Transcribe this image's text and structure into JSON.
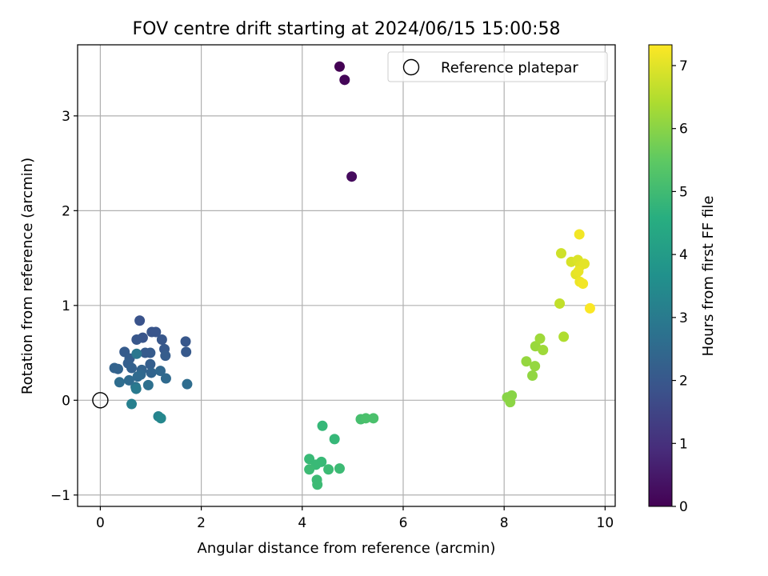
{
  "chart_data": {
    "type": "scatter",
    "title": "FOV centre drift starting at 2024/06/15 15:00:58",
    "xlabel": "Angular distance from reference (arcmin)",
    "ylabel": "Rotation from reference (arcmin)",
    "xlim": [
      -0.45,
      10.2
    ],
    "ylim": [
      -1.12,
      3.75
    ],
    "xticks": [
      0,
      2,
      4,
      6,
      8,
      10
    ],
    "xtick_labels": [
      "0",
      "2",
      "4",
      "6",
      "8",
      "10"
    ],
    "yticks": [
      -1,
      0,
      1,
      2,
      3
    ],
    "ytick_labels": [
      "−1",
      "0",
      "1",
      "2",
      "3"
    ],
    "grid": true,
    "legend": {
      "location": "upper right",
      "entries": [
        "Reference platepar"
      ]
    },
    "reference_point": {
      "x": 0,
      "y": 0,
      "marker": "open-circle"
    },
    "colorbar": {
      "label": "Hours from first FF file",
      "range": [
        0,
        7.33
      ],
      "ticks": [
        0,
        1,
        2,
        3,
        4,
        5,
        6,
        7
      ],
      "tick_labels": [
        "0",
        "1",
        "2",
        "3",
        "4",
        "5",
        "6",
        "7"
      ],
      "colormap": "viridis"
    },
    "points": [
      {
        "x": 4.74,
        "y": 3.52,
        "c": 0.0
      },
      {
        "x": 4.84,
        "y": 3.38,
        "c": 0.1
      },
      {
        "x": 4.98,
        "y": 2.36,
        "c": 0.2
      },
      {
        "x": 0.78,
        "y": 0.84,
        "c": 1.9
      },
      {
        "x": 1.02,
        "y": 0.72,
        "c": 1.95
      },
      {
        "x": 1.1,
        "y": 0.72,
        "c": 1.95
      },
      {
        "x": 0.84,
        "y": 0.66,
        "c": 1.95
      },
      {
        "x": 0.72,
        "y": 0.64,
        "c": 2.0
      },
      {
        "x": 1.22,
        "y": 0.64,
        "c": 2.0
      },
      {
        "x": 1.69,
        "y": 0.62,
        "c": 2.0
      },
      {
        "x": 1.27,
        "y": 0.54,
        "c": 2.05
      },
      {
        "x": 1.7,
        "y": 0.51,
        "c": 2.05
      },
      {
        "x": 0.48,
        "y": 0.51,
        "c": 2.1
      },
      {
        "x": 0.89,
        "y": 0.5,
        "c": 2.1
      },
      {
        "x": 0.99,
        "y": 0.5,
        "c": 2.1
      },
      {
        "x": 1.29,
        "y": 0.47,
        "c": 2.15
      },
      {
        "x": 0.58,
        "y": 0.44,
        "c": 2.15
      },
      {
        "x": 0.55,
        "y": 0.39,
        "c": 2.2
      },
      {
        "x": 0.99,
        "y": 0.38,
        "c": 2.2
      },
      {
        "x": 0.62,
        "y": 0.34,
        "c": 2.25
      },
      {
        "x": 0.28,
        "y": 0.34,
        "c": 2.3
      },
      {
        "x": 0.35,
        "y": 0.33,
        "c": 2.3
      },
      {
        "x": 0.82,
        "y": 0.32,
        "c": 2.3
      },
      {
        "x": 1.01,
        "y": 0.29,
        "c": 2.35
      },
      {
        "x": 1.19,
        "y": 0.31,
        "c": 2.45
      },
      {
        "x": 0.8,
        "y": 0.27,
        "c": 2.45
      },
      {
        "x": 0.74,
        "y": 0.25,
        "c": 2.5
      },
      {
        "x": 1.3,
        "y": 0.23,
        "c": 2.5
      },
      {
        "x": 0.57,
        "y": 0.21,
        "c": 2.55
      },
      {
        "x": 0.38,
        "y": 0.19,
        "c": 2.6
      },
      {
        "x": 1.72,
        "y": 0.17,
        "c": 2.6
      },
      {
        "x": 0.95,
        "y": 0.16,
        "c": 2.7
      },
      {
        "x": 0.7,
        "y": 0.14,
        "c": 2.75
      },
      {
        "x": 0.72,
        "y": 0.49,
        "c": 2.9
      },
      {
        "x": 0.71,
        "y": 0.12,
        "c": 3.0
      },
      {
        "x": 0.62,
        "y": -0.04,
        "c": 3.2
      },
      {
        "x": 1.15,
        "y": -0.17,
        "c": 3.3
      },
      {
        "x": 1.2,
        "y": -0.19,
        "c": 3.4
      },
      {
        "x": 4.4,
        "y": -0.27,
        "c": 4.9
      },
      {
        "x": 4.64,
        "y": -0.41,
        "c": 4.9
      },
      {
        "x": 4.14,
        "y": -0.62,
        "c": 4.95
      },
      {
        "x": 4.38,
        "y": -0.65,
        "c": 4.95
      },
      {
        "x": 4.27,
        "y": -0.68,
        "c": 4.95
      },
      {
        "x": 4.14,
        "y": -0.73,
        "c": 5.0
      },
      {
        "x": 4.52,
        "y": -0.73,
        "c": 5.0
      },
      {
        "x": 4.74,
        "y": -0.72,
        "c": 5.0
      },
      {
        "x": 4.29,
        "y": -0.84,
        "c": 5.0
      },
      {
        "x": 4.3,
        "y": -0.89,
        "c": 5.0
      },
      {
        "x": 5.16,
        "y": -0.2,
        "c": 5.15
      },
      {
        "x": 5.26,
        "y": -0.19,
        "c": 5.2
      },
      {
        "x": 5.41,
        "y": -0.19,
        "c": 5.2
      },
      {
        "x": 8.06,
        "y": 0.03,
        "c": 6.0
      },
      {
        "x": 8.15,
        "y": 0.05,
        "c": 6.0
      },
      {
        "x": 8.12,
        "y": -0.02,
        "c": 6.05
      },
      {
        "x": 8.56,
        "y": 0.26,
        "c": 6.1
      },
      {
        "x": 8.44,
        "y": 0.41,
        "c": 6.15
      },
      {
        "x": 8.61,
        "y": 0.36,
        "c": 6.15
      },
      {
        "x": 8.62,
        "y": 0.57,
        "c": 6.2
      },
      {
        "x": 8.77,
        "y": 0.53,
        "c": 6.25
      },
      {
        "x": 8.71,
        "y": 0.65,
        "c": 6.25
      },
      {
        "x": 9.18,
        "y": 0.67,
        "c": 6.45
      },
      {
        "x": 9.1,
        "y": 1.02,
        "c": 6.65
      },
      {
        "x": 9.13,
        "y": 1.55,
        "c": 6.8
      },
      {
        "x": 9.33,
        "y": 1.46,
        "c": 6.9
      },
      {
        "x": 9.46,
        "y": 1.48,
        "c": 6.95
      },
      {
        "x": 9.51,
        "y": 1.42,
        "c": 7.0
      },
      {
        "x": 9.59,
        "y": 1.44,
        "c": 7.05
      },
      {
        "x": 9.42,
        "y": 1.33,
        "c": 7.05
      },
      {
        "x": 9.47,
        "y": 1.36,
        "c": 7.1
      },
      {
        "x": 9.5,
        "y": 1.25,
        "c": 7.15
      },
      {
        "x": 9.56,
        "y": 1.23,
        "c": 7.2
      },
      {
        "x": 9.49,
        "y": 1.75,
        "c": 7.2
      },
      {
        "x": 9.7,
        "y": 0.97,
        "c": 7.3
      }
    ]
  }
}
